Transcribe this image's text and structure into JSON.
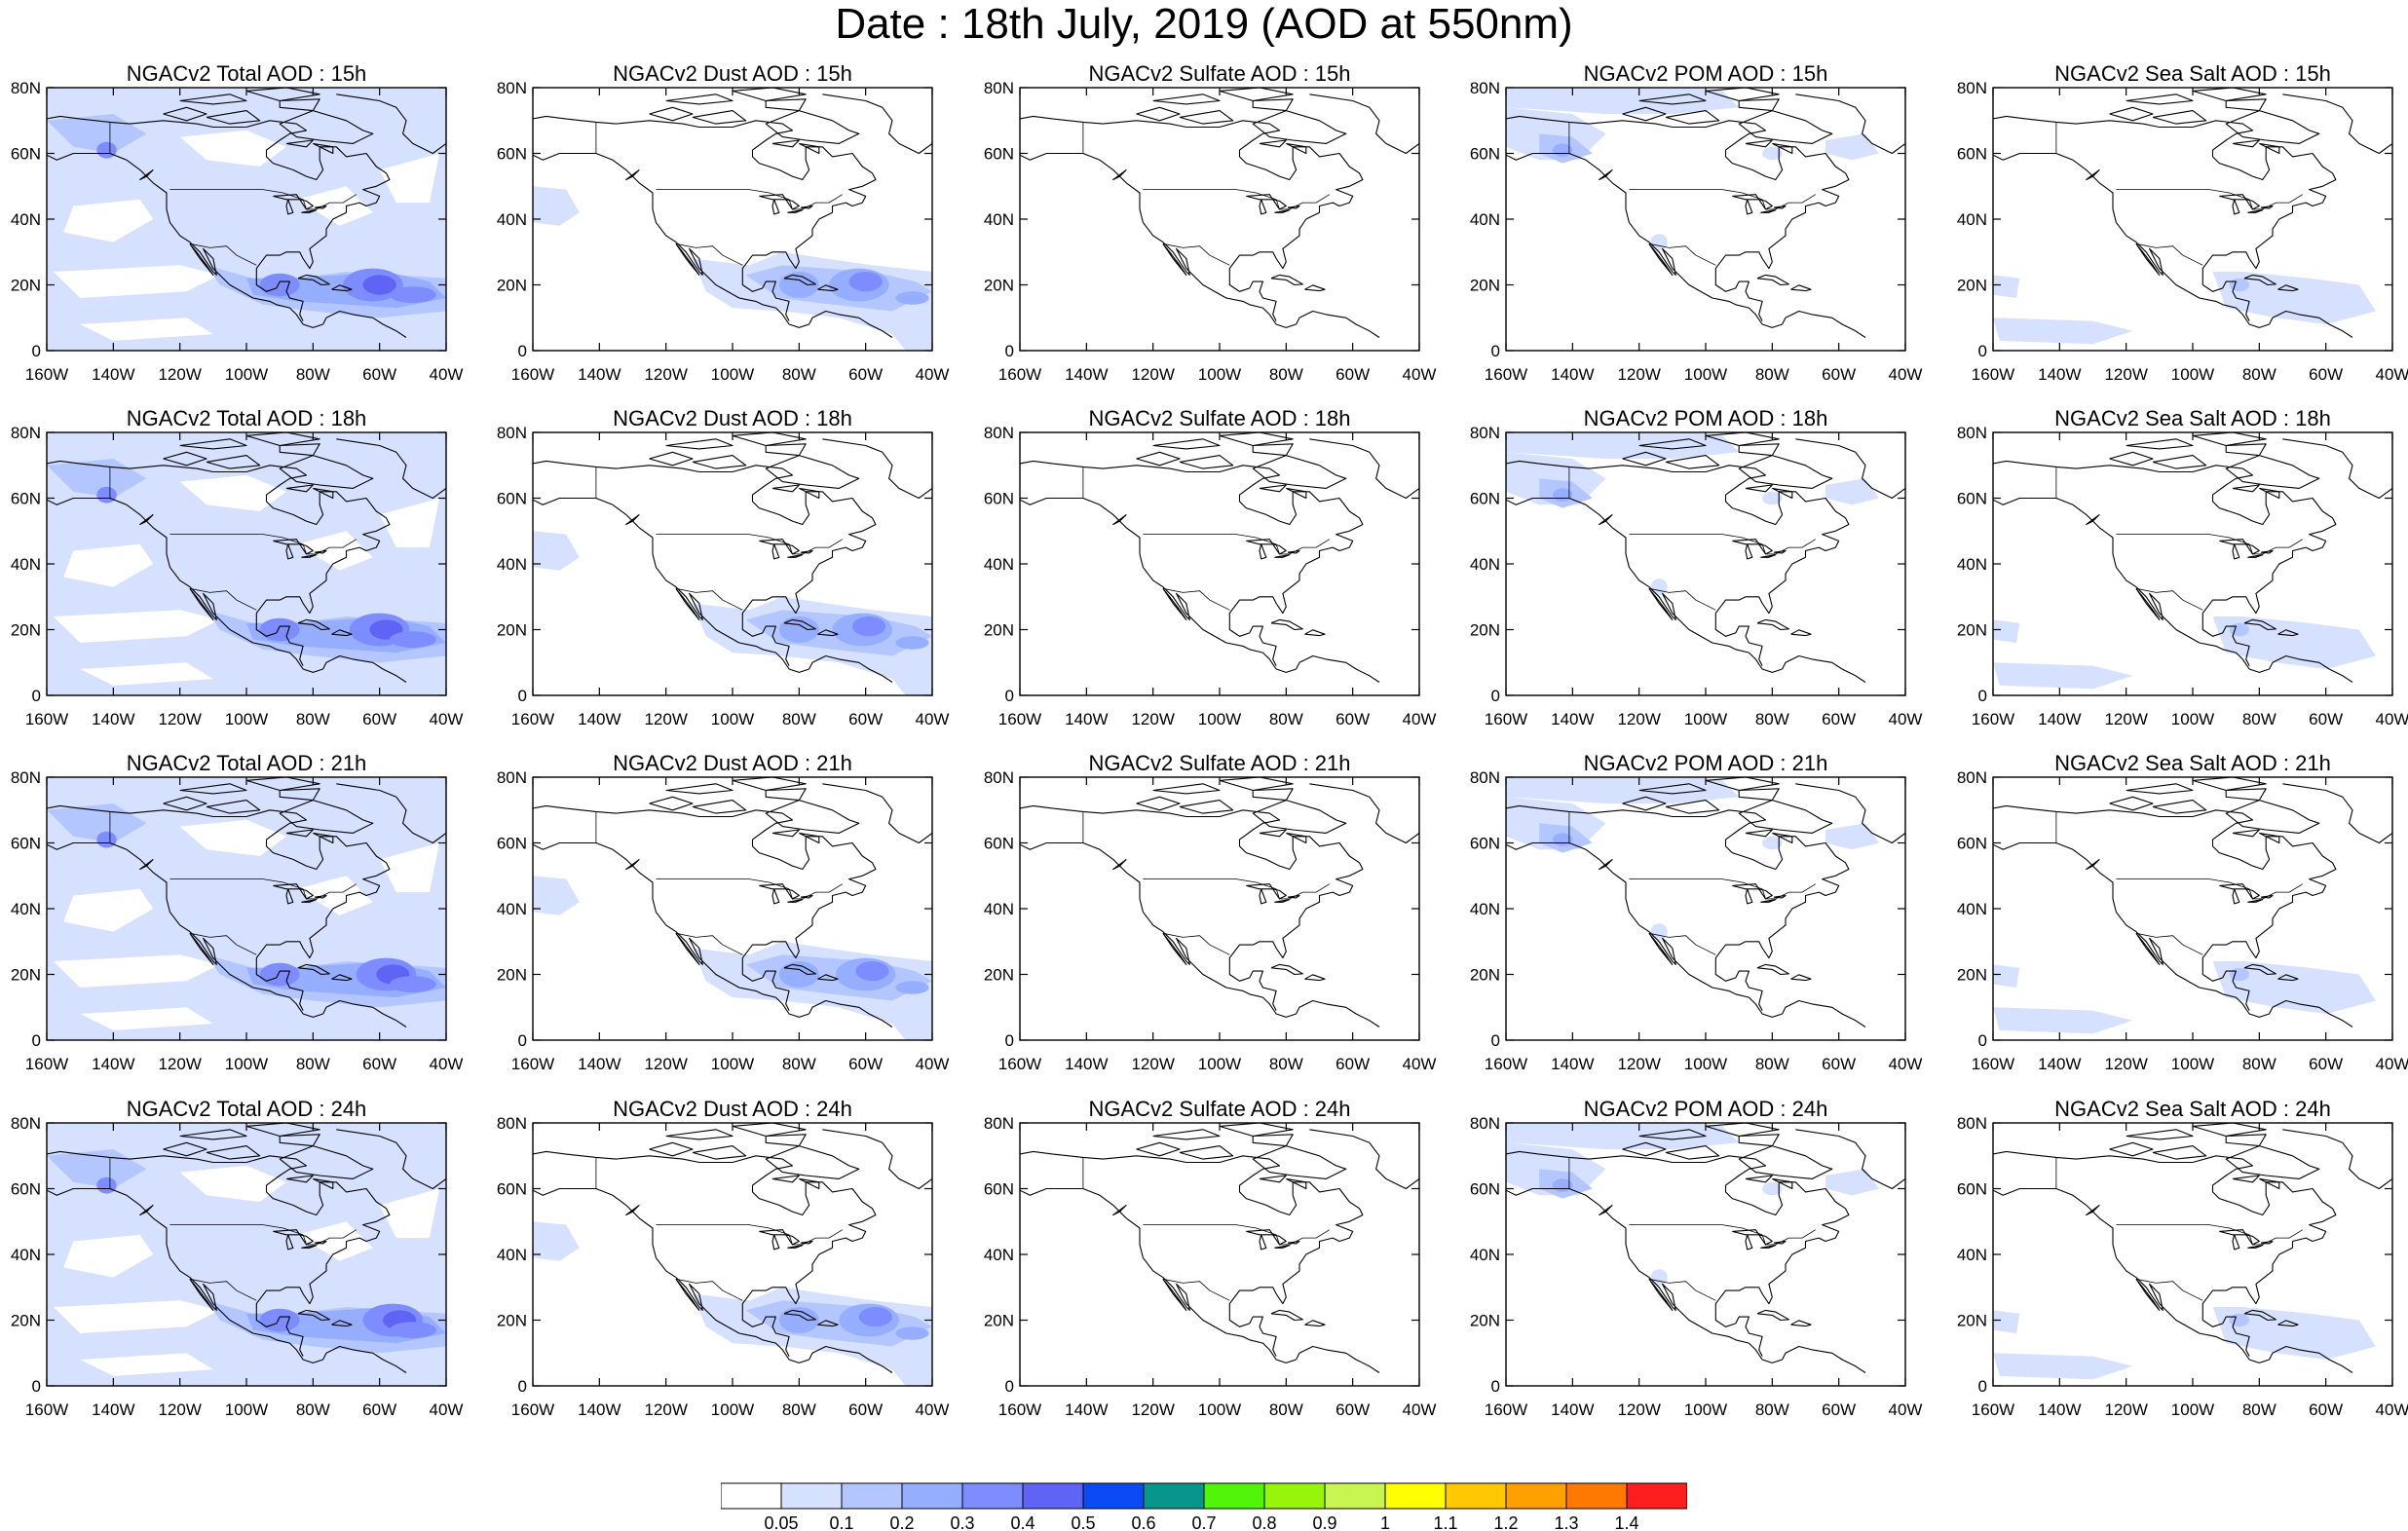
{
  "title": "Date : 18th July, 2019 (AOD at 550nm)",
  "rows": [
    "15h",
    "18h",
    "21h",
    "24h"
  ],
  "columns": [
    {
      "key": "total",
      "label": "NGACv2 Total AOD",
      "sep": " : "
    },
    {
      "key": "dust",
      "label": "NGACv2 Dust AOD",
      "sep": " : "
    },
    {
      "key": "sulfate",
      "label": "NGACv2 Sulfate AOD",
      "sep": " : "
    },
    {
      "key": "pom",
      "label": "NGACv2 POM AOD",
      "sep": " : "
    },
    {
      "key": "seasalt",
      "label": "NGACv2 Sea Salt AOD",
      "sep": " : "
    }
  ],
  "panels": [
    {
      "title": "NGACv2 Total AOD : 15h",
      "column": "total"
    },
    {
      "title": "NGACv2 Dust AOD : 15h",
      "column": "dust"
    },
    {
      "title": "NGACv2 Sulfate AOD : 15h",
      "column": "sulfate"
    },
    {
      "title": "NGACv2 POM AOD : 15h",
      "column": "pom"
    },
    {
      "title": "NGACv2 Sea Salt AOD : 15h",
      "column": "seasalt"
    },
    {
      "title": "NGACv2 Total AOD : 18h",
      "column": "total"
    },
    {
      "title": "NGACv2 Dust AOD : 18h",
      "column": "dust"
    },
    {
      "title": "NGACv2 Sulfate AOD : 18h",
      "column": "sulfate"
    },
    {
      "title": "NGACv2 POM AOD : 18h",
      "column": "pom"
    },
    {
      "title": "NGACv2 Sea Salt AOD : 18h",
      "column": "seasalt"
    },
    {
      "title": "NGACv2 Total AOD : 21h",
      "column": "total"
    },
    {
      "title": "NGACv2 Dust AOD : 21h",
      "column": "dust"
    },
    {
      "title": "NGACv2 Sulfate AOD : 21h",
      "column": "sulfate"
    },
    {
      "title": "NGACv2 POM AOD : 21h",
      "column": "pom"
    },
    {
      "title": "NGACv2 Sea Salt AOD : 21h",
      "column": "seasalt"
    },
    {
      "title": "NGACv2 Total AOD : 24h",
      "column": "total"
    },
    {
      "title": "NGACv2 Dust AOD : 24h",
      "column": "dust"
    },
    {
      "title": "NGACv2 Sulfate AOD : 24h",
      "column": "sulfate"
    },
    {
      "title": "NGACv2 POM AOD : 24h",
      "column": "pom"
    },
    {
      "title": "NGACv2 Sea Salt  AOD : 24h",
      "column": "seasalt"
    }
  ],
  "map": {
    "lon_range": [
      -160,
      -40
    ],
    "lat_range": [
      0,
      80
    ],
    "lon_ticks": [
      "160W",
      "140W",
      "120W",
      "100W",
      "80W",
      "60W",
      "40W"
    ],
    "lat_ticks": [
      "0",
      "20N",
      "40N",
      "60N",
      "80N"
    ]
  },
  "colorbar": {
    "levels": [
      "0.05",
      "0.1",
      "0.2",
      "0.3",
      "0.4",
      "0.5",
      "0.6",
      "0.7",
      "0.8",
      "0.9",
      "1",
      "1.1",
      "1.2",
      "1.3",
      "1.4"
    ],
    "colors": [
      "#ffffff",
      "#d6e0ff",
      "#b4c6ff",
      "#96aeff",
      "#7d8cff",
      "#5f64f5",
      "#0a4bf5",
      "#06968c",
      "#50f50a",
      "#96f50a",
      "#c8f550",
      "#ffff00",
      "#ffc800",
      "#ffa000",
      "#ff7800",
      "#ff1e1e"
    ]
  },
  "aod_colors": {
    "level1": "#d6e0ff",
    "level2": "#b4c6ff",
    "level3": "#96aeff",
    "level4": "#7d8cff",
    "level5": "#5f64f5",
    "level6": "#0a4bf5"
  }
}
